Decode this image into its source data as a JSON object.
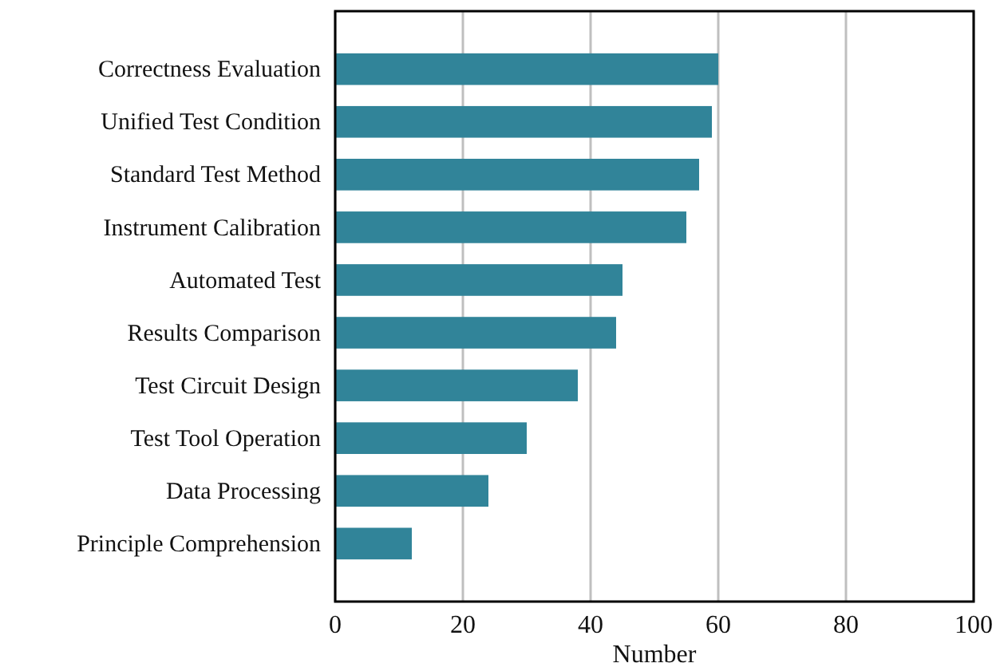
{
  "chart_data": {
    "type": "bar",
    "orientation": "horizontal",
    "xlabel": "Number",
    "categories": [
      "Correctness Evaluation",
      "Unified Test Condition",
      "Standard Test Method",
      "Instrument Calibration",
      "Automated Test",
      "Results Comparison",
      "Test Circuit Design",
      "Test Tool Operation",
      "Data Processing",
      "Principle Comprehension"
    ],
    "values": [
      60,
      59,
      57,
      55,
      45,
      44,
      38,
      30,
      24,
      12
    ],
    "color": "#318499",
    "xlim": [
      0,
      100
    ],
    "xticks": [
      0,
      20,
      40,
      60,
      80,
      100
    ],
    "grid": "x"
  }
}
